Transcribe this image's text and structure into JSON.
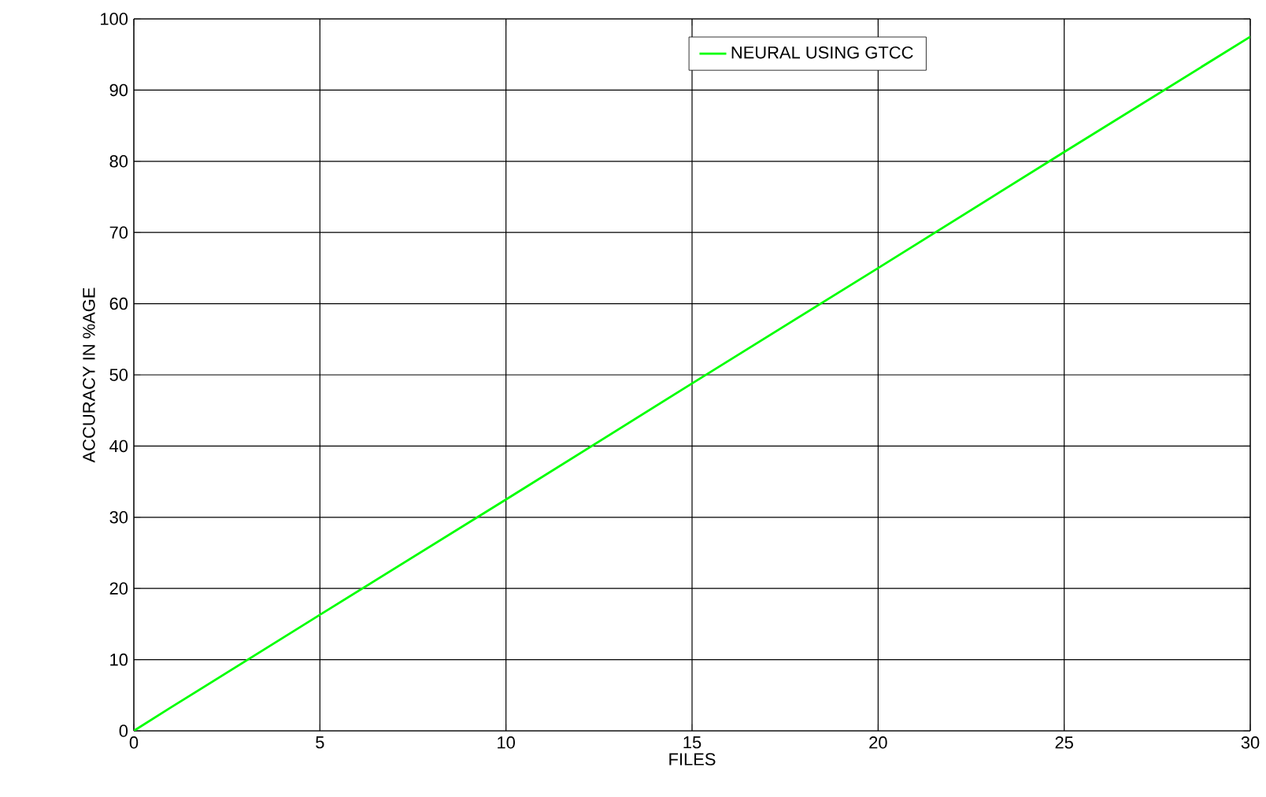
{
  "chart_data": {
    "type": "line",
    "xlabel": "FILES",
    "ylabel": "ACCURACY IN %AGE",
    "x": [
      0,
      1,
      5,
      10,
      15,
      20,
      25,
      30
    ],
    "series": [
      {
        "name": "NEURAL USING GTCC",
        "color": "#00ff00",
        "values": [
          0,
          3.3,
          16.3,
          32.5,
          48.8,
          65,
          81.3,
          97.5
        ]
      }
    ],
    "xlim": [
      0,
      30
    ],
    "ylim": [
      0,
      100
    ],
    "xticks": [
      0,
      5,
      10,
      15,
      20,
      25,
      30
    ],
    "yticks": [
      0,
      10,
      20,
      30,
      40,
      50,
      60,
      70,
      80,
      90,
      100
    ],
    "grid": true,
    "legend": "top right",
    "marker": "none",
    "line_style": "solid"
  }
}
